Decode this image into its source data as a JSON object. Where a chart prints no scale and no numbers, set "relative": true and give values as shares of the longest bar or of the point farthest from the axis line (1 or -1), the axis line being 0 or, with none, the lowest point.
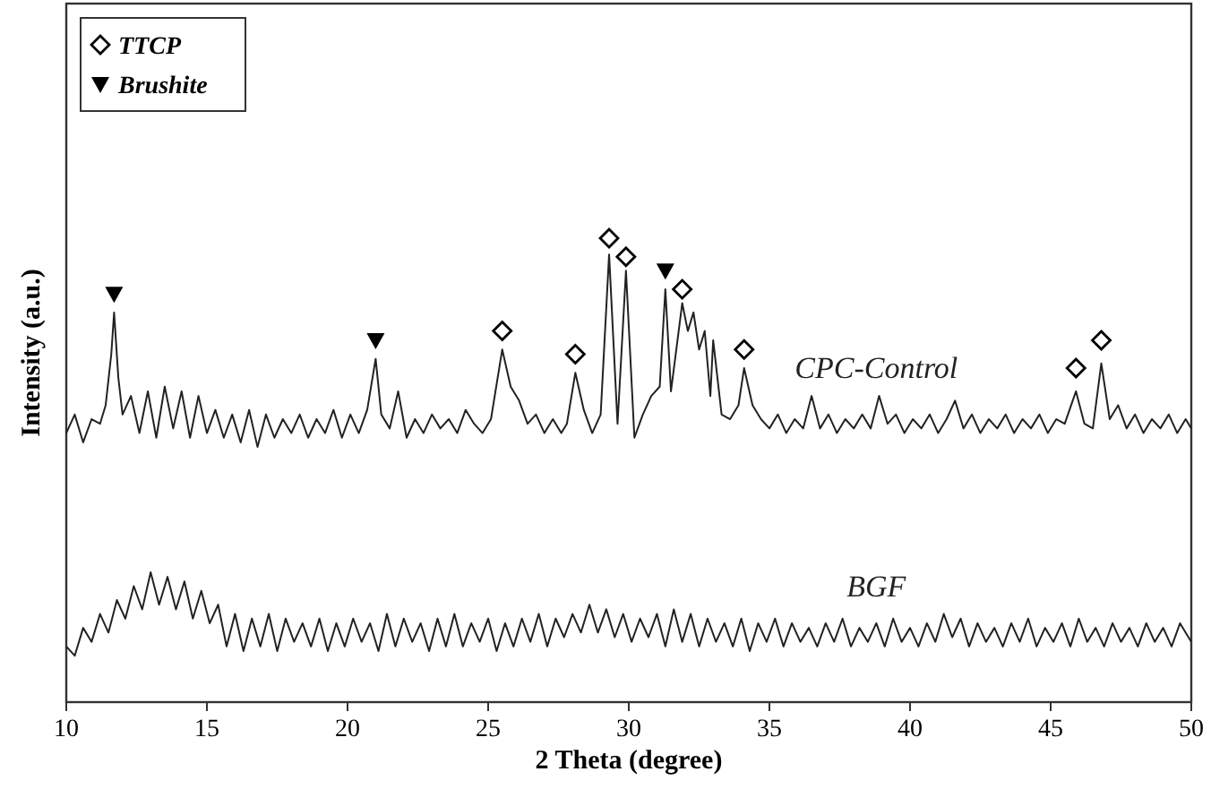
{
  "chart_data": {
    "type": "line",
    "xlabel": "2 Theta (degree)",
    "ylabel": "Intensity (a.u.)",
    "relative": true,
    "xlim": [
      10,
      50
    ],
    "xticks": [
      10,
      15,
      20,
      25,
      30,
      35,
      40,
      45,
      50
    ],
    "grid": false,
    "legend": "top left",
    "tick_labels": "x",
    "line_style": "solid",
    "series": [
      {
        "name": "CPC-Control",
        "color": "#222222",
        "x": [
          10.0,
          10.3,
          10.6,
          10.9,
          11.2,
          11.4,
          11.6,
          11.7,
          11.85,
          12.0,
          12.3,
          12.6,
          12.9,
          13.2,
          13.5,
          13.8,
          14.1,
          14.4,
          14.7,
          15.0,
          15.3,
          15.6,
          15.9,
          16.2,
          16.5,
          16.8,
          17.1,
          17.4,
          17.7,
          18.0,
          18.3,
          18.6,
          18.9,
          19.2,
          19.5,
          19.8,
          20.1,
          20.4,
          20.7,
          21.0,
          21.2,
          21.5,
          21.8,
          22.1,
          22.4,
          22.7,
          23.0,
          23.3,
          23.6,
          23.9,
          24.2,
          24.5,
          24.8,
          25.1,
          25.5,
          25.8,
          26.1,
          26.4,
          26.7,
          27.0,
          27.3,
          27.6,
          27.8,
          28.1,
          28.4,
          28.7,
          29.0,
          29.3,
          29.6,
          29.9,
          30.2,
          30.5,
          30.8,
          31.1,
          31.3,
          31.5,
          31.9,
          32.1,
          32.3,
          32.5,
          32.7,
          32.9,
          33.0,
          33.3,
          33.6,
          33.9,
          34.1,
          34.4,
          34.7,
          35.0,
          35.3,
          35.6,
          35.9,
          36.2,
          36.5,
          36.8,
          37.1,
          37.4,
          37.7,
          38.0,
          38.3,
          38.6,
          38.9,
          39.2,
          39.5,
          39.8,
          40.1,
          40.4,
          40.7,
          41.0,
          41.3,
          41.6,
          41.9,
          42.2,
          42.5,
          42.8,
          43.1,
          43.4,
          43.7,
          44.0,
          44.3,
          44.6,
          44.9,
          45.2,
          45.5,
          45.9,
          46.2,
          46.5,
          46.8,
          47.1,
          47.4,
          47.7,
          48.0,
          48.3,
          48.6,
          48.9,
          49.2,
          49.5,
          49.8,
          50.0
        ],
        "values": [
          0.58,
          0.62,
          0.56,
          0.61,
          0.6,
          0.64,
          0.75,
          0.84,
          0.7,
          0.62,
          0.66,
          0.58,
          0.67,
          0.57,
          0.68,
          0.59,
          0.67,
          0.57,
          0.66,
          0.58,
          0.63,
          0.57,
          0.62,
          0.56,
          0.63,
          0.55,
          0.62,
          0.57,
          0.61,
          0.58,
          0.62,
          0.57,
          0.61,
          0.58,
          0.63,
          0.57,
          0.62,
          0.58,
          0.63,
          0.74,
          0.62,
          0.59,
          0.67,
          0.57,
          0.61,
          0.58,
          0.62,
          0.59,
          0.61,
          0.58,
          0.63,
          0.6,
          0.58,
          0.61,
          0.76,
          0.68,
          0.65,
          0.6,
          0.62,
          0.58,
          0.61,
          0.58,
          0.6,
          0.71,
          0.63,
          0.58,
          0.62,
          0.965,
          0.6,
          0.93,
          0.57,
          0.62,
          0.66,
          0.68,
          0.89,
          0.67,
          0.86,
          0.8,
          0.84,
          0.76,
          0.8,
          0.66,
          0.78,
          0.62,
          0.61,
          0.64,
          0.72,
          0.64,
          0.61,
          0.59,
          0.62,
          0.58,
          0.61,
          0.59,
          0.66,
          0.59,
          0.62,
          0.58,
          0.61,
          0.59,
          0.62,
          0.59,
          0.66,
          0.6,
          0.62,
          0.58,
          0.61,
          0.59,
          0.62,
          0.58,
          0.61,
          0.65,
          0.59,
          0.62,
          0.58,
          0.61,
          0.59,
          0.62,
          0.58,
          0.61,
          0.59,
          0.62,
          0.58,
          0.61,
          0.6,
          0.67,
          0.6,
          0.59,
          0.73,
          0.61,
          0.64,
          0.59,
          0.62,
          0.58,
          0.61,
          0.59,
          0.62,
          0.58,
          0.61,
          0.59
        ]
      },
      {
        "name": "BGF",
        "color": "#222222",
        "x": [
          10.0,
          10.3,
          10.6,
          10.9,
          11.2,
          11.5,
          11.8,
          12.1,
          12.4,
          12.7,
          13.0,
          13.3,
          13.6,
          13.9,
          14.2,
          14.5,
          14.8,
          15.1,
          15.4,
          15.7,
          16.0,
          16.3,
          16.6,
          16.9,
          17.2,
          17.5,
          17.8,
          18.1,
          18.4,
          18.7,
          19.0,
          19.3,
          19.6,
          19.9,
          20.2,
          20.5,
          20.8,
          21.1,
          21.4,
          21.7,
          22.0,
          22.3,
          22.6,
          22.9,
          23.2,
          23.5,
          23.8,
          24.1,
          24.4,
          24.7,
          25.0,
          25.3,
          25.6,
          25.9,
          26.2,
          26.5,
          26.8,
          27.1,
          27.4,
          27.7,
          28.0,
          28.3,
          28.6,
          28.9,
          29.2,
          29.5,
          29.8,
          30.1,
          30.4,
          30.7,
          31.0,
          31.3,
          31.6,
          31.9,
          32.2,
          32.5,
          32.8,
          33.1,
          33.4,
          33.7,
          34.0,
          34.3,
          34.6,
          34.9,
          35.2,
          35.5,
          35.8,
          36.1,
          36.4,
          36.7,
          37.0,
          37.3,
          37.6,
          37.9,
          38.2,
          38.5,
          38.8,
          39.1,
          39.4,
          39.7,
          40.0,
          40.3,
          40.6,
          40.9,
          41.2,
          41.5,
          41.8,
          42.1,
          42.4,
          42.7,
          43.0,
          43.3,
          43.6,
          43.9,
          44.2,
          44.5,
          44.8,
          45.1,
          45.4,
          45.7,
          46.0,
          46.3,
          46.6,
          46.9,
          47.2,
          47.5,
          47.8,
          48.1,
          48.4,
          48.7,
          49.0,
          49.3,
          49.6,
          50.0
        ],
        "values": [
          0.12,
          0.1,
          0.16,
          0.13,
          0.19,
          0.15,
          0.22,
          0.18,
          0.25,
          0.2,
          0.28,
          0.21,
          0.27,
          0.2,
          0.26,
          0.18,
          0.24,
          0.17,
          0.21,
          0.12,
          0.19,
          0.11,
          0.18,
          0.12,
          0.19,
          0.11,
          0.18,
          0.13,
          0.17,
          0.12,
          0.18,
          0.11,
          0.17,
          0.12,
          0.18,
          0.13,
          0.17,
          0.11,
          0.19,
          0.12,
          0.18,
          0.13,
          0.17,
          0.11,
          0.18,
          0.12,
          0.19,
          0.12,
          0.17,
          0.13,
          0.18,
          0.11,
          0.17,
          0.12,
          0.18,
          0.13,
          0.19,
          0.12,
          0.18,
          0.14,
          0.19,
          0.15,
          0.21,
          0.15,
          0.2,
          0.14,
          0.19,
          0.13,
          0.18,
          0.14,
          0.19,
          0.12,
          0.2,
          0.13,
          0.19,
          0.12,
          0.18,
          0.13,
          0.17,
          0.12,
          0.18,
          0.11,
          0.17,
          0.13,
          0.18,
          0.12,
          0.17,
          0.13,
          0.16,
          0.12,
          0.17,
          0.13,
          0.18,
          0.12,
          0.16,
          0.13,
          0.17,
          0.12,
          0.18,
          0.13,
          0.16,
          0.12,
          0.17,
          0.13,
          0.19,
          0.14,
          0.18,
          0.12,
          0.17,
          0.13,
          0.16,
          0.12,
          0.17,
          0.13,
          0.18,
          0.12,
          0.16,
          0.13,
          0.17,
          0.12,
          0.18,
          0.13,
          0.16,
          0.12,
          0.17,
          0.13,
          0.16,
          0.12,
          0.17,
          0.13,
          0.16,
          0.12,
          0.17,
          0.13
        ]
      },
      {
        "name": "TTCP",
        "type": "scatter",
        "marker": "diamond",
        "color": "#000000",
        "x": [
          25.5,
          28.1,
          29.3,
          29.9,
          31.9,
          34.1,
          45.9,
          46.8
        ],
        "values": [
          0.8,
          0.75,
          1.0,
          0.96,
          0.89,
          0.76,
          0.72,
          0.78
        ]
      },
      {
        "name": "Brushite",
        "type": "scatter",
        "marker": "triangle",
        "color": "#000000",
        "x": [
          11.7,
          21.0,
          31.3
        ],
        "values": [
          0.88,
          0.78,
          0.93
        ]
      }
    ]
  }
}
